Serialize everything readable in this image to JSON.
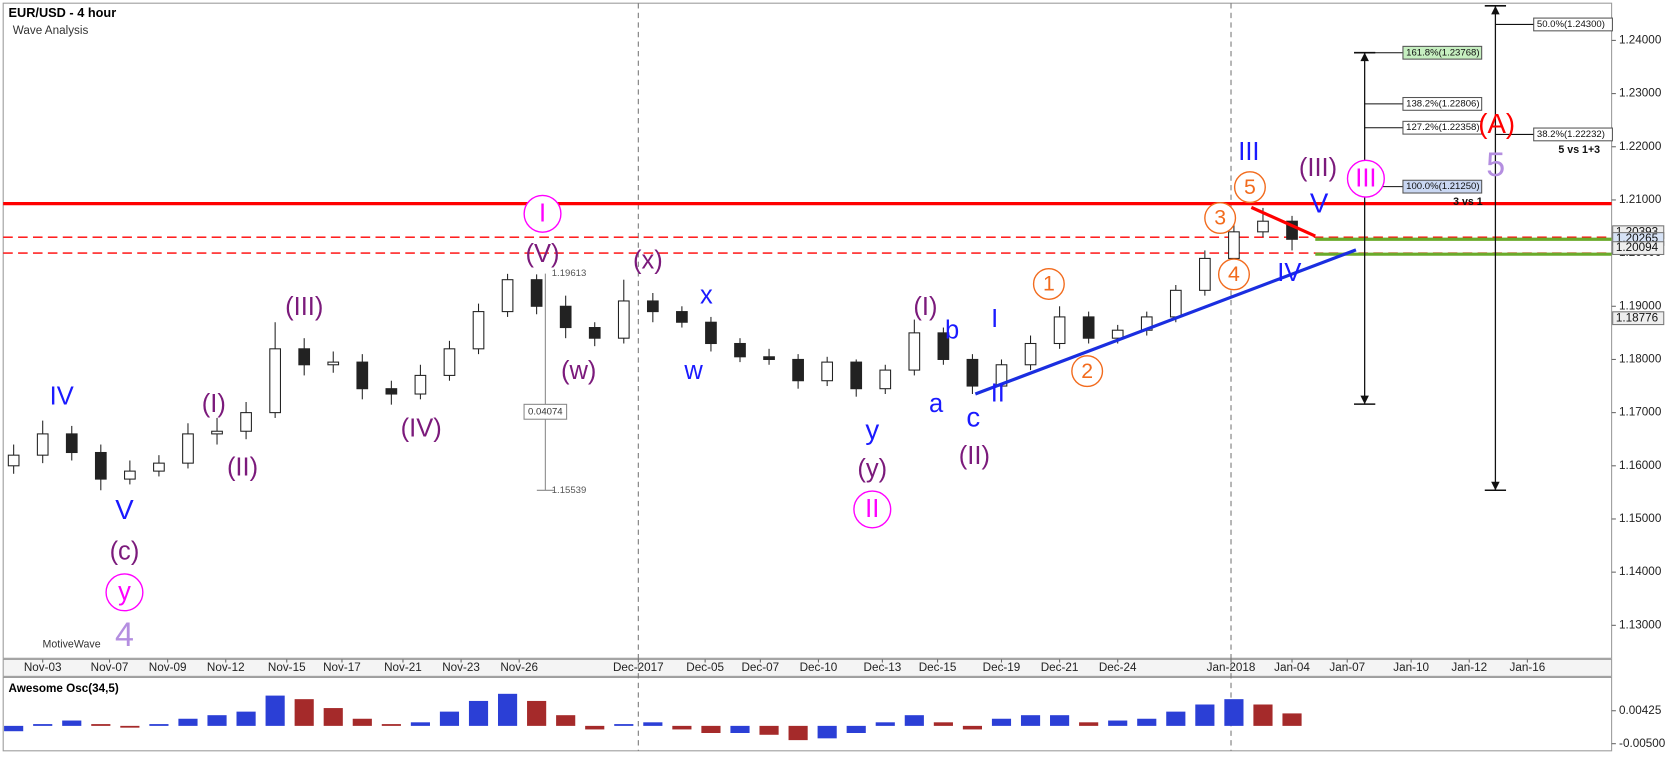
{
  "chart_data": [
    {
      "type": "candlestick",
      "title": "EUR/USD - 4 hour",
      "subtitle": "Wave Analysis",
      "watermark": "MotiveWave",
      "x": [
        -1,
        0,
        1,
        2,
        3,
        4,
        5,
        6,
        7,
        8,
        9,
        10,
        11,
        12,
        13,
        14,
        15,
        16,
        17,
        18,
        19,
        20,
        21,
        22,
        23,
        24,
        25,
        26,
        27,
        28,
        29,
        30,
        31,
        32,
        33,
        34,
        35,
        36,
        37,
        38,
        39,
        40,
        41,
        42,
        43
      ],
      "open": [
        1.16,
        1.162,
        1.166,
        1.1625,
        1.1575,
        1.159,
        1.1605,
        1.166,
        1.1665,
        1.17,
        1.182,
        1.179,
        1.1795,
        1.1745,
        1.1735,
        1.177,
        1.182,
        1.189,
        1.195,
        1.19,
        1.186,
        1.184,
        1.191,
        1.189,
        1.187,
        1.183,
        1.1805,
        1.18,
        1.176,
        1.1795,
        1.1745,
        1.178,
        1.185,
        1.18,
        1.175,
        1.179,
        1.183,
        1.188,
        1.184,
        1.1855,
        1.188,
        1.193,
        1.199,
        1.204,
        1.206
      ],
      "high": [
        1.164,
        1.1685,
        1.1675,
        1.164,
        1.161,
        1.162,
        1.168,
        1.169,
        1.172,
        1.187,
        1.184,
        1.1815,
        1.181,
        1.176,
        1.179,
        1.1835,
        1.1905,
        1.1961,
        1.196,
        1.192,
        1.187,
        1.195,
        1.1925,
        1.19,
        1.188,
        1.184,
        1.182,
        1.181,
        1.1805,
        1.18,
        1.179,
        1.1875,
        1.186,
        1.181,
        1.18,
        1.1845,
        1.19,
        1.189,
        1.1865,
        1.189,
        1.194,
        1.2005,
        1.206,
        1.2085,
        1.207
      ],
      "low": [
        1.1585,
        1.1605,
        1.161,
        1.1554,
        1.1565,
        1.158,
        1.1595,
        1.164,
        1.165,
        1.169,
        1.177,
        1.1775,
        1.1725,
        1.1715,
        1.1725,
        1.176,
        1.181,
        1.188,
        1.1885,
        1.184,
        1.1825,
        1.183,
        1.187,
        1.186,
        1.1815,
        1.1795,
        1.179,
        1.1745,
        1.175,
        1.173,
        1.1735,
        1.177,
        1.179,
        1.1735,
        1.174,
        1.178,
        1.182,
        1.183,
        1.183,
        1.1845,
        1.187,
        1.192,
        1.198,
        1.203,
        1.2005
      ],
      "close": [
        1.162,
        1.166,
        1.1625,
        1.1575,
        1.159,
        1.1605,
        1.166,
        1.1665,
        1.17,
        1.182,
        1.179,
        1.1795,
        1.1745,
        1.1735,
        1.177,
        1.182,
        1.189,
        1.195,
        1.19,
        1.186,
        1.184,
        1.191,
        1.189,
        1.187,
        1.183,
        1.1805,
        1.18,
        1.176,
        1.1795,
        1.1745,
        1.178,
        1.185,
        1.18,
        1.175,
        1.179,
        1.183,
        1.188,
        1.184,
        1.1855,
        1.188,
        1.193,
        1.199,
        1.204,
        1.206,
        1.2026
      ],
      "up_color": "#ffffff",
      "down_color": "#222222",
      "wick_color": "#222222",
      "xlim": [
        -1.36,
        54.0
      ],
      "xticks": [
        {
          "value": 0,
          "label": "Nov-03"
        },
        {
          "value": 2.3,
          "label": "Nov-07"
        },
        {
          "value": 4.3,
          "label": "Nov-09"
        },
        {
          "value": 6.3,
          "label": "Nov-12"
        },
        {
          "value": 8.4,
          "label": "Nov-15"
        },
        {
          "value": 10.3,
          "label": "Nov-17"
        },
        {
          "value": 12.4,
          "label": "Nov-21"
        },
        {
          "value": 14.4,
          "label": "Nov-23"
        },
        {
          "value": 16.4,
          "label": "Nov-26"
        },
        {
          "value": 20.5,
          "label": "Dec-2017",
          "month_start": true
        },
        {
          "value": 22.8,
          "label": "Dec-05"
        },
        {
          "value": 24.7,
          "label": "Dec-07"
        },
        {
          "value": 26.7,
          "label": "Dec-10"
        },
        {
          "value": 28.9,
          "label": "Dec-13"
        },
        {
          "value": 30.8,
          "label": "Dec-15"
        },
        {
          "value": 33.0,
          "label": "Dec-19"
        },
        {
          "value": 35.0,
          "label": "Dec-21"
        },
        {
          "value": 37.0,
          "label": "Dec-24"
        },
        {
          "value": 40.9,
          "label": "Jan-2018",
          "month_start": true
        },
        {
          "value": 43.0,
          "label": "Jan-04"
        },
        {
          "value": 44.9,
          "label": "Jan-07"
        },
        {
          "value": 47.1,
          "label": "Jan-10"
        },
        {
          "value": 49.1,
          "label": "Jan-12"
        },
        {
          "value": 51.1,
          "label": "Jan-16"
        }
      ],
      "ylim": [
        1.1238,
        1.247
      ],
      "yticks": [
        {
          "value": 1.13,
          "label": "1.13000"
        },
        {
          "value": 1.14,
          "label": "1.14000"
        },
        {
          "value": 1.15,
          "label": "1.15000"
        },
        {
          "value": 1.16,
          "label": "1.16000"
        },
        {
          "value": 1.17,
          "label": "1.17000"
        },
        {
          "value": 1.18,
          "label": "1.18000"
        },
        {
          "value": 1.19,
          "label": "1.19000"
        },
        {
          "value": 1.2,
          "label": "1.20000"
        },
        {
          "value": 1.21,
          "label": "1.21000"
        },
        {
          "value": 1.22,
          "label": "1.22000"
        },
        {
          "value": 1.23,
          "label": "1.23000"
        },
        {
          "value": 1.24,
          "label": "1.24000"
        }
      ],
      "levels": [
        {
          "value": 1.2093,
          "color": "#ff0000",
          "dashed": false
        },
        {
          "value": 1.203,
          "color": "#ff0000",
          "dashed": true
        },
        {
          "value": 1.2,
          "color": "#ff0000",
          "dashed": true
        },
        {
          "value": 1.2026,
          "color": "#6aaa2a",
          "dashed": false,
          "x_from": 43.8
        },
        {
          "value": 1.1998,
          "color": "#6aaa2a",
          "dashed": false,
          "x_from": 43.8
        }
      ],
      "trendlines": [
        {
          "x": [
            32.1,
            45.2
          ],
          "y": [
            1.1735,
            1.2006
          ],
          "color": "#1a2ee0"
        },
        {
          "x": [
            41.6,
            43.8
          ],
          "y": [
            1.2086,
            1.2032
          ],
          "color": "#ff0000"
        }
      ],
      "price_markers": [
        1.20393,
        1.20265,
        1.20094,
        1.18776
      ],
      "measure": {
        "x": 17.3,
        "from": 1.19613,
        "to": 1.15539,
        "diff": 0.04074
      },
      "fibs": [
        {
          "x": 45.5,
          "from": 1.1716,
          "to": 1.2377,
          "levels": [
            {
              "value": 1.23768,
              "label": "161.8%(1.23768)",
              "bg": "#c6efc0"
            },
            {
              "value": 1.22806,
              "label": "138.2%(1.22806)",
              "bg": "#ffffff"
            },
            {
              "value": 1.22358,
              "label": "127.2%(1.22358)",
              "bg": "#ffffff"
            },
            {
              "value": 1.2125,
              "label": "100.0%(1.21250)",
              "bg": "#c9d7f2"
            }
          ]
        },
        {
          "x": 50.0,
          "from": 1.1554,
          "to": 1.2465,
          "levels": [
            {
              "value": 1.243,
              "label": "50.0%(1.24300)",
              "bg": "#ffffff"
            },
            {
              "value": 1.22232,
              "label": "38.2%(1.22232)",
              "bg": "#ffffff"
            }
          ]
        }
      ],
      "notes": [
        "5 vs 1+3",
        "3 vs 1"
      ],
      "annotations": [
        {
          "text": "I",
          "color": "#ff00ff",
          "circled": true
        },
        {
          "text": "II",
          "color": "#ff00ff",
          "circled": true
        },
        {
          "text": "III",
          "color": "#ff00ff",
          "circled": true
        },
        {
          "text": "y",
          "color": "#ff00ff",
          "circled": true
        },
        {
          "text": "4",
          "color": "#b48ee0",
          "circled": false
        },
        {
          "text": "5",
          "color": "#b48ee0",
          "circled": false
        },
        {
          "text": "(A)",
          "color": "#ff0000",
          "circled": false
        },
        {
          "text": "(III)",
          "color": "#7b1a7b",
          "circled": false
        },
        {
          "text": "(I)",
          "color": "#7b1a7b",
          "circled": false
        },
        {
          "text": "(II)",
          "color": "#7b1a7b",
          "circled": false
        },
        {
          "text": "(IV)",
          "color": "#7b1a7b",
          "circled": false
        },
        {
          "text": "(V)",
          "color": "#7b1a7b",
          "circled": false
        },
        {
          "text": "(x)",
          "color": "#7b1a7b",
          "circled": false
        },
        {
          "text": "(w)",
          "color": "#7b1a7b",
          "circled": false
        },
        {
          "text": "(c)",
          "color": "#7b1a7b",
          "circled": false
        },
        {
          "text": "(y)",
          "color": "#7b1a7b",
          "circled": false
        },
        {
          "text": "(I)",
          "color": "#7b1a7b",
          "circled": false
        },
        {
          "text": "(II)",
          "color": "#7b1a7b",
          "circled": false
        },
        {
          "text": "(III)",
          "color": "#7b1a7b",
          "circled": false
        },
        {
          "text": "IV",
          "color": "#1a1aff",
          "circled": false
        },
        {
          "text": "V",
          "color": "#1a1aff",
          "circled": false
        },
        {
          "text": "x",
          "color": "#1a1aff",
          "circled": false
        },
        {
          "text": "w",
          "color": "#1a1aff",
          "circled": false
        },
        {
          "text": "y",
          "color": "#1a1aff",
          "circled": false
        },
        {
          "text": "b",
          "color": "#1a1aff",
          "circled": false
        },
        {
          "text": "a",
          "color": "#1a1aff",
          "circled": false
        },
        {
          "text": "c",
          "color": "#1a1aff",
          "circled": false
        },
        {
          "text": "I",
          "color": "#1a1aff",
          "circled": false
        },
        {
          "text": "II",
          "color": "#1a1aff",
          "circled": false
        },
        {
          "text": "III",
          "color": "#1a1aff",
          "circled": false
        },
        {
          "text": "V",
          "color": "#1a1aff",
          "circled": false
        },
        {
          "text": "IV",
          "color": "#1a1aff",
          "circled": false
        },
        {
          "text": "1",
          "color": "#f26b1d",
          "circled": true
        },
        {
          "text": "2",
          "color": "#f26b1d",
          "circled": true
        },
        {
          "text": "3",
          "color": "#f26b1d",
          "circled": true
        },
        {
          "text": "4",
          "color": "#f26b1d",
          "circled": true
        },
        {
          "text": "5",
          "color": "#f26b1d",
          "circled": true
        }
      ]
    },
    {
      "type": "bar",
      "title": "Awesome Osc(34,5)",
      "x": [
        -1,
        0,
        1,
        2,
        3,
        4,
        5,
        6,
        7,
        8,
        9,
        10,
        11,
        12,
        13,
        14,
        15,
        16,
        17,
        18,
        19,
        20,
        21,
        22,
        23,
        24,
        25,
        26,
        27,
        28,
        29,
        30,
        31,
        32,
        33,
        34,
        35,
        36,
        37,
        38,
        39,
        40,
        41,
        42,
        43
      ],
      "values": [
        -0.0015,
        0.0005,
        0.0015,
        0.0005,
        -0.0005,
        0.0005,
        0.002,
        0.003,
        0.004,
        0.0085,
        0.0075,
        0.005,
        0.002,
        0.0005,
        0.001,
        0.004,
        0.007,
        0.009,
        0.007,
        0.003,
        -0.001,
        0.0005,
        0.001,
        -0.001,
        -0.002,
        -0.002,
        -0.0025,
        -0.004,
        -0.0035,
        -0.002,
        0.001,
        0.003,
        0.001,
        -0.001,
        0.002,
        0.003,
        0.003,
        0.001,
        0.0015,
        0.002,
        0.004,
        0.006,
        0.0075,
        0.006,
        0.0035
      ],
      "up_color": "#2b3fd6",
      "down_color": "#a52a2a",
      "ylim": [
        -0.007,
        0.0136
      ],
      "yticks": [
        0.00425,
        {
          "value": -0.005,
          "label": "-0.00500"
        }
      ]
    }
  ]
}
